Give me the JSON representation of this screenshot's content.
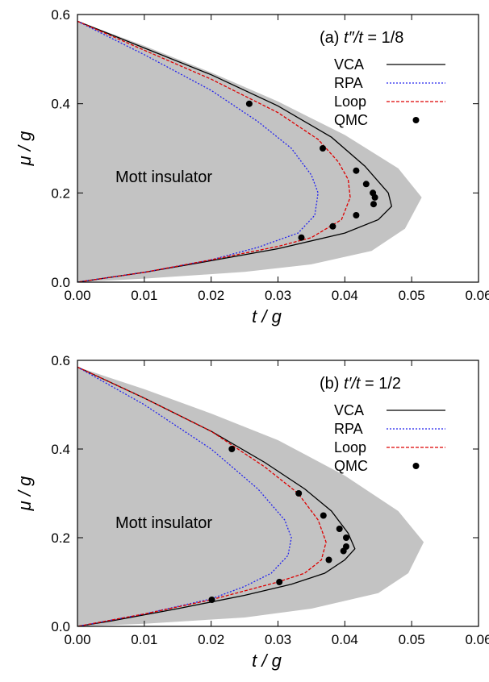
{
  "chart_data": [
    {
      "type": "line",
      "panel_label": "(a)",
      "param_prefix": "t″/",
      "param_var": "t",
      "param_value": " = 1/8",
      "xlabel": "t / g",
      "ylabel": "μ / g",
      "xlim": [
        0,
        0.06
      ],
      "ylim": [
        0,
        0.6
      ],
      "xticks": [
        "0.00",
        "0.01",
        "0.02",
        "0.03",
        "0.04",
        "0.05",
        "0.06"
      ],
      "yticks": [
        "0.0",
        "0.2",
        "0.4",
        "0.6"
      ],
      "region_label": "Mott insulator",
      "region": {
        "upper_edge": [
          [
            0,
            0.585
          ],
          [
            0.01,
            0.53
          ],
          [
            0.02,
            0.47
          ],
          [
            0.03,
            0.405
          ],
          [
            0.04,
            0.33
          ],
          [
            0.048,
            0.255
          ],
          [
            0.0515,
            0.19
          ]
        ],
        "lower_edge": [
          [
            0.0515,
            0.19
          ],
          [
            0.049,
            0.12
          ],
          [
            0.044,
            0.07
          ],
          [
            0.035,
            0.04
          ],
          [
            0.025,
            0.023
          ],
          [
            0.01,
            0.008
          ],
          [
            0,
            0
          ]
        ]
      },
      "series": [
        {
          "name": "VCA",
          "color": "#000000",
          "dash": "",
          "x": [
            0,
            0.01,
            0.02,
            0.03,
            0.038,
            0.043,
            0.0465,
            0.047,
            0.045,
            0.04,
            0.03,
            0.02,
            0.01,
            0
          ],
          "y": [
            0.585,
            0.525,
            0.465,
            0.395,
            0.325,
            0.26,
            0.2,
            0.17,
            0.14,
            0.11,
            0.075,
            0.048,
            0.022,
            0
          ]
        },
        {
          "name": "RPA",
          "color": "#2222ee",
          "dash": "2,2",
          "x": [
            0,
            0.01,
            0.02,
            0.027,
            0.032,
            0.035,
            0.036,
            0.0355,
            0.033,
            0.027,
            0.02,
            0.01,
            0
          ],
          "y": [
            0.585,
            0.51,
            0.43,
            0.36,
            0.3,
            0.24,
            0.2,
            0.15,
            0.11,
            0.078,
            0.05,
            0.022,
            0
          ]
        },
        {
          "name": "Loop",
          "color": "#dd0000",
          "dash": "4,2",
          "x": [
            0,
            0.01,
            0.02,
            0.03,
            0.036,
            0.039,
            0.0405,
            0.0408,
            0.0395,
            0.035,
            0.03,
            0.02,
            0.01,
            0
          ],
          "y": [
            0.585,
            0.52,
            0.455,
            0.38,
            0.32,
            0.27,
            0.23,
            0.19,
            0.14,
            0.1,
            0.08,
            0.05,
            0.022,
            0
          ]
        },
        {
          "name": "QMC",
          "color": "#000000",
          "marker": true,
          "x": [
            0.0257,
            0.0367,
            0.0417,
            0.0432,
            0.0442,
            0.0445,
            0.0443,
            0.0417,
            0.0382,
            0.0335
          ],
          "y": [
            0.4,
            0.3,
            0.25,
            0.22,
            0.2,
            0.19,
            0.175,
            0.15,
            0.125,
            0.1
          ]
        }
      ]
    },
    {
      "type": "line",
      "panel_label": "(b)",
      "param_prefix": "t′/",
      "param_var": "t",
      "param_value": " = 1/2",
      "xlabel": "t / g",
      "ylabel": "μ / g",
      "xlim": [
        0,
        0.06
      ],
      "ylim": [
        0,
        0.6
      ],
      "xticks": [
        "0.00",
        "0.01",
        "0.02",
        "0.03",
        "0.04",
        "0.05",
        "0.06"
      ],
      "yticks": [
        "0.0",
        "0.2",
        "0.4",
        "0.6"
      ],
      "region_label": "Mott insulator",
      "region": {
        "upper_edge": [
          [
            0,
            0.585
          ],
          [
            0.01,
            0.535
          ],
          [
            0.02,
            0.48
          ],
          [
            0.03,
            0.42
          ],
          [
            0.04,
            0.34
          ],
          [
            0.048,
            0.26
          ],
          [
            0.0518,
            0.19
          ]
        ],
        "lower_edge": [
          [
            0.0518,
            0.19
          ],
          [
            0.0495,
            0.12
          ],
          [
            0.045,
            0.075
          ],
          [
            0.035,
            0.04
          ],
          [
            0.025,
            0.02
          ],
          [
            0.01,
            0.006
          ],
          [
            0,
            0
          ]
        ]
      },
      "series": [
        {
          "name": "VCA",
          "color": "#000000",
          "dash": "",
          "x": [
            0,
            0.01,
            0.02,
            0.028,
            0.034,
            0.038,
            0.0405,
            0.0415,
            0.04,
            0.037,
            0.032,
            0.025,
            0.015,
            0.005,
            0
          ],
          "y": [
            0.585,
            0.515,
            0.44,
            0.37,
            0.31,
            0.26,
            0.21,
            0.175,
            0.15,
            0.12,
            0.095,
            0.07,
            0.04,
            0.012,
            0
          ]
        },
        {
          "name": "RPA",
          "color": "#2222ee",
          "dash": "2,2",
          "x": [
            0,
            0.01,
            0.02,
            0.027,
            0.031,
            0.032,
            0.0315,
            0.029,
            0.025,
            0.02,
            0.01,
            0
          ],
          "y": [
            0.585,
            0.5,
            0.4,
            0.31,
            0.24,
            0.2,
            0.16,
            0.12,
            0.09,
            0.062,
            0.028,
            0
          ]
        },
        {
          "name": "Loop",
          "color": "#dd0000",
          "dash": "4,2",
          "x": [
            0,
            0.01,
            0.02,
            0.028,
            0.033,
            0.036,
            0.0372,
            0.0365,
            0.034,
            0.03,
            0.02,
            0.01,
            0
          ],
          "y": [
            0.585,
            0.515,
            0.44,
            0.36,
            0.3,
            0.24,
            0.19,
            0.15,
            0.12,
            0.1,
            0.06,
            0.028,
            0
          ]
        },
        {
          "name": "QMC",
          "color": "#000000",
          "marker": true,
          "x": [
            0.0231,
            0.0331,
            0.0368,
            0.0392,
            0.0402,
            0.0402,
            0.0398,
            0.0376,
            0.0302,
            0.0201
          ],
          "y": [
            0.4,
            0.3,
            0.25,
            0.22,
            0.2,
            0.18,
            0.17,
            0.15,
            0.1,
            0.06
          ]
        }
      ]
    }
  ]
}
